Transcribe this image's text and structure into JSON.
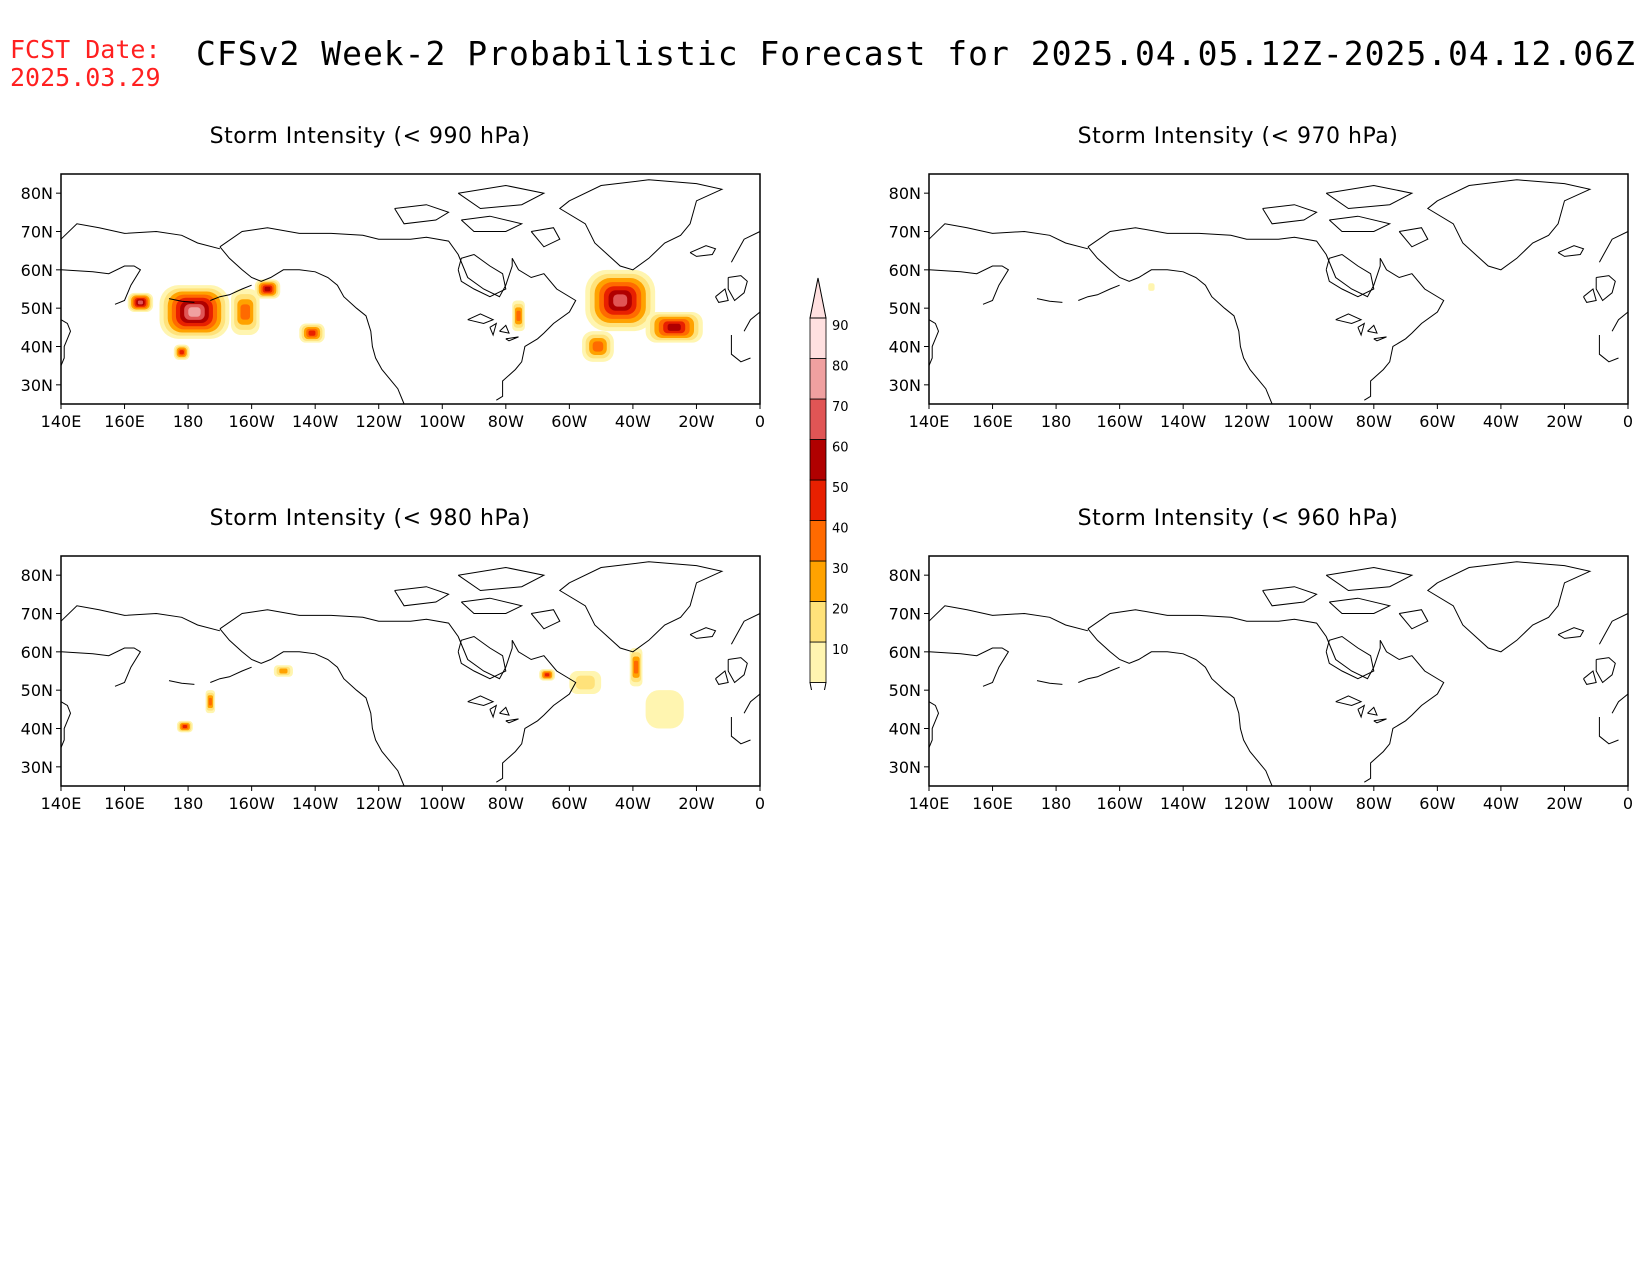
{
  "header": {
    "fcst_label": "FCST Date:",
    "fcst_date": "2025.03.29",
    "title": "CFSv2 Week-2 Probabilistic Forecast for 2025.04.05.12Z-2025.04.12.06Z"
  },
  "axes": {
    "lon_labels": [
      "140E",
      "160E",
      "180",
      "160W",
      "140W",
      "120W",
      "100W",
      "80W",
      "60W",
      "40W",
      "20W",
      "0"
    ],
    "lat_labels": [
      "80N",
      "70N",
      "60N",
      "50N",
      "40N",
      "30N"
    ]
  },
  "colorbar": {
    "levels": [
      "10",
      "20",
      "30",
      "40",
      "50",
      "60",
      "70",
      "80",
      "90"
    ],
    "colors": [
      "#fff5b0",
      "#ffe27a",
      "#ffa200",
      "#ff6a00",
      "#e82000",
      "#b00000",
      "#e05555",
      "#f0a0a0",
      "#ffe0e0"
    ]
  },
  "panels": [
    {
      "id": "p990",
      "title": "Storm Intensity (< 990 hPa)",
      "regions": [
        {
          "lon": 165,
          "lat": 51.5,
          "w": 8,
          "h": 5,
          "prob": 70
        },
        {
          "lon": 182,
          "lat": 49,
          "w": 22,
          "h": 14,
          "prob": 80
        },
        {
          "lon": 178,
          "lat": 38.5,
          "w": 5,
          "h": 4,
          "prob": 50
        },
        {
          "lon": 198,
          "lat": 49,
          "w": 9,
          "h": 12,
          "prob": 40
        },
        {
          "lon": 205,
          "lat": 55,
          "w": 8,
          "h": 5,
          "prob": 60
        },
        {
          "lon": 219,
          "lat": 43.5,
          "w": 8,
          "h": 5,
          "prob": 50
        },
        {
          "lon": 284,
          "lat": 48,
          "w": 4,
          "h": 8,
          "prob": 40
        },
        {
          "lon": 316,
          "lat": 52,
          "w": 22,
          "h": 16,
          "prob": 70
        },
        {
          "lon": 309,
          "lat": 40,
          "w": 10,
          "h": 8,
          "prob": 40
        },
        {
          "lon": 333,
          "lat": 45,
          "w": 18,
          "h": 8,
          "prob": 60
        }
      ]
    },
    {
      "id": "p970",
      "title": "Storm Intensity (< 970 hPa)",
      "regions": [
        {
          "lon": 210,
          "lat": 55.5,
          "w": 2,
          "h": 2,
          "prob": 10
        }
      ]
    },
    {
      "id": "p980",
      "title": "Storm Intensity (< 980 hPa)",
      "regions": [
        {
          "lon": 179,
          "lat": 40.5,
          "w": 5,
          "h": 3,
          "prob": 50
        },
        {
          "lon": 187,
          "lat": 47,
          "w": 3,
          "h": 6,
          "prob": 40
        },
        {
          "lon": 210,
          "lat": 55,
          "w": 6,
          "h": 3,
          "prob": 30
        },
        {
          "lon": 293,
          "lat": 54,
          "w": 5,
          "h": 3,
          "prob": 50
        },
        {
          "lon": 305,
          "lat": 52,
          "w": 10,
          "h": 6,
          "prob": 20
        },
        {
          "lon": 321,
          "lat": 56,
          "w": 4,
          "h": 10,
          "prob": 40
        },
        {
          "lon": 330,
          "lat": 45,
          "w": 12,
          "h": 10,
          "prob": 10
        }
      ]
    },
    {
      "id": "p960",
      "title": "Storm Intensity (< 960 hPa)",
      "regions": []
    }
  ]
}
